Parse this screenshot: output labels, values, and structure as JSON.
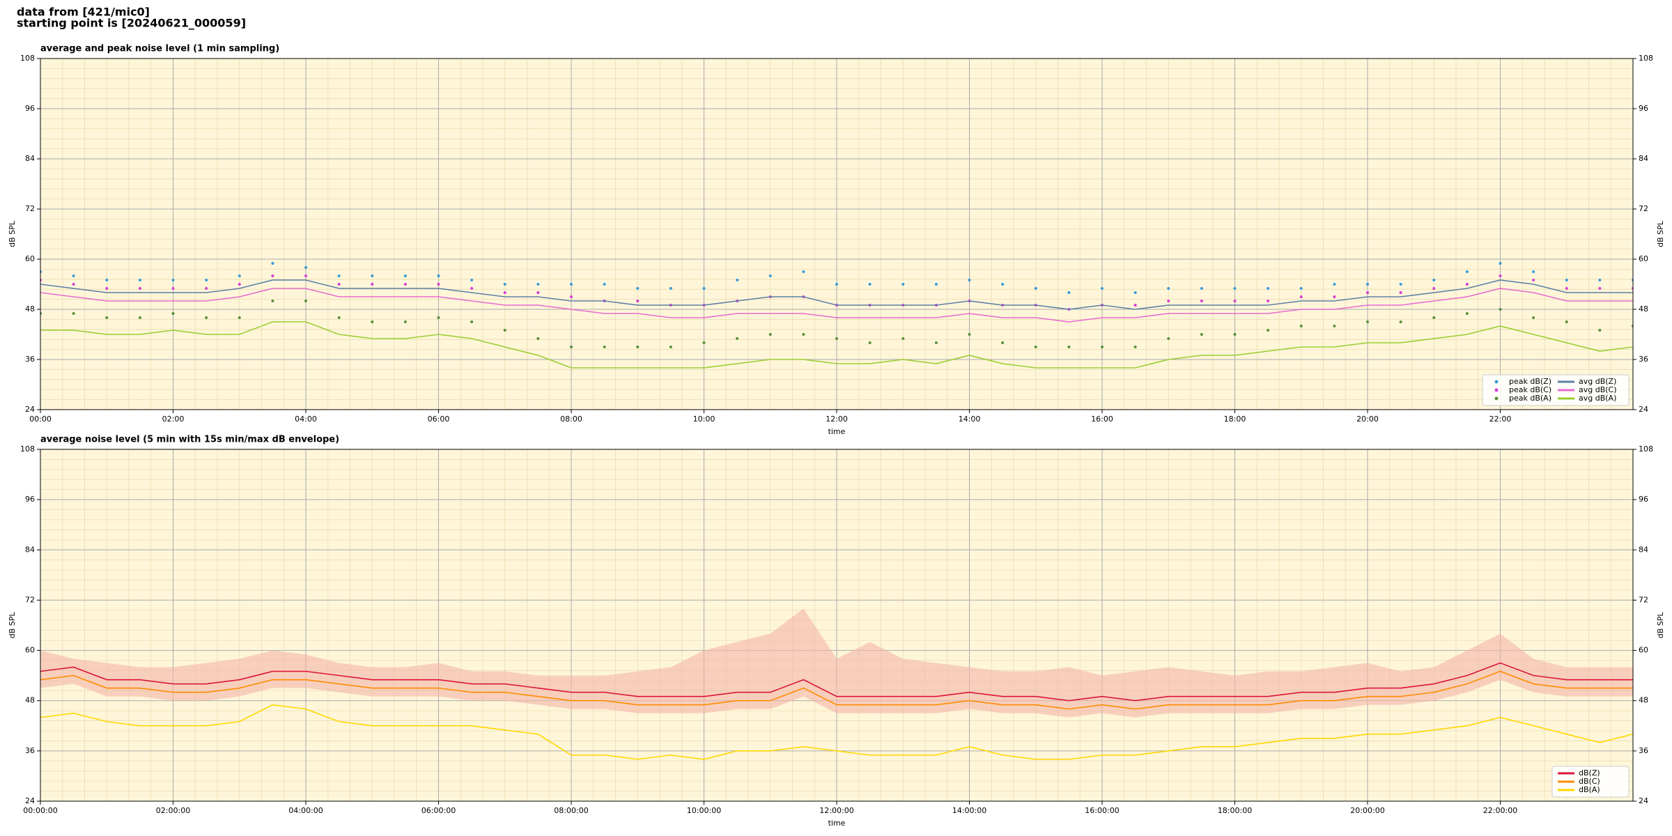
{
  "header": [
    "data from [421/mic0]",
    "starting point is [20240621_000059]"
  ],
  "chart_data": [
    {
      "type": "line",
      "title": "average and peak noise level (1 min sampling)",
      "xlabel": "time",
      "ylabel": "dB SPL",
      "xlim": [
        0,
        24
      ],
      "ylim": [
        24,
        108
      ],
      "yticks": [
        24,
        36,
        48,
        60,
        72,
        84,
        96,
        108
      ],
      "xticks": [
        {
          "value": 0,
          "label": "00:00"
        },
        {
          "value": 2,
          "label": "02:00"
        },
        {
          "value": 4,
          "label": "04:00"
        },
        {
          "value": 6,
          "label": "06:00"
        },
        {
          "value": 8,
          "label": "08:00"
        },
        {
          "value": 10,
          "label": "10:00"
        },
        {
          "value": 12,
          "label": "12:00"
        },
        {
          "value": 14,
          "label": "14:00"
        },
        {
          "value": 16,
          "label": "16:00"
        },
        {
          "value": 18,
          "label": "18:00"
        },
        {
          "value": 20,
          "label": "20:00"
        },
        {
          "value": 22,
          "label": "22:00"
        }
      ],
      "grid": true,
      "minor_grid": true,
      "background": "#fff6d9",
      "legend": "lower right",
      "legend_columns": 2,
      "x": [
        0,
        0.5,
        1,
        1.5,
        2,
        2.5,
        3,
        3.5,
        4,
        4.5,
        5,
        5.5,
        6,
        6.5,
        7,
        7.5,
        8,
        8.5,
        9,
        9.5,
        10,
        10.5,
        11,
        11.5,
        12,
        12.5,
        13,
        13.5,
        14,
        14.5,
        15,
        15.5,
        16,
        16.5,
        17,
        17.5,
        18,
        18.5,
        19,
        19.5,
        20,
        20.5,
        21,
        21.5,
        22,
        22.5,
        23,
        23.5,
        24
      ],
      "series": [
        {
          "name": "peak dB(Z)",
          "mode": "markers",
          "color": "#3a9ad9",
          "values": [
            57,
            56,
            55,
            55,
            55,
            55,
            56,
            59,
            58,
            56,
            56,
            56,
            56,
            55,
            54,
            54,
            54,
            54,
            53,
            53,
            53,
            55,
            56,
            57,
            54,
            54,
            54,
            54,
            55,
            54,
            53,
            52,
            53,
            52,
            53,
            53,
            53,
            53,
            53,
            54,
            54,
            54,
            55,
            57,
            59,
            57,
            55,
            55,
            55
          ]
        },
        {
          "name": "peak dB(C)",
          "mode": "markers",
          "color": "#d63ed6",
          "values": [
            55,
            54,
            53,
            53,
            53,
            53,
            54,
            56,
            56,
            54,
            54,
            54,
            54,
            53,
            52,
            52,
            51,
            50,
            50,
            49,
            49,
            50,
            51,
            51,
            49,
            49,
            49,
            49,
            50,
            49,
            49,
            48,
            49,
            49,
            50,
            50,
            50,
            50,
            51,
            51,
            52,
            52,
            53,
            54,
            56,
            55,
            53,
            53,
            53
          ]
        },
        {
          "name": "peak dB(A)",
          "mode": "markers",
          "color": "#5a8f3a",
          "values": [
            47,
            47,
            46,
            46,
            47,
            46,
            46,
            50,
            50,
            46,
            45,
            45,
            46,
            45,
            43,
            41,
            39,
            39,
            39,
            39,
            40,
            41,
            42,
            42,
            41,
            40,
            41,
            40,
            42,
            40,
            39,
            39,
            39,
            39,
            41,
            42,
            42,
            43,
            44,
            44,
            45,
            45,
            46,
            47,
            48,
            46,
            45,
            43,
            44
          ]
        },
        {
          "name": "avg dB(Z)",
          "mode": "lines",
          "color": "#5b7fa6",
          "values": [
            54,
            53,
            52,
            52,
            52,
            52,
            53,
            55,
            55,
            53,
            53,
            53,
            53,
            52,
            51,
            51,
            50,
            50,
            49,
            49,
            49,
            50,
            51,
            51,
            49,
            49,
            49,
            49,
            50,
            49,
            49,
            48,
            49,
            48,
            49,
            49,
            49,
            49,
            50,
            50,
            51,
            51,
            52,
            53,
            55,
            54,
            52,
            52,
            52
          ]
        },
        {
          "name": "avg dB(C)",
          "mode": "lines",
          "color": "#e86ad1",
          "values": [
            52,
            51,
            50,
            50,
            50,
            50,
            51,
            53,
            53,
            51,
            51,
            51,
            51,
            50,
            49,
            49,
            48,
            47,
            47,
            46,
            46,
            47,
            47,
            47,
            46,
            46,
            46,
            46,
            47,
            46,
            46,
            45,
            46,
            46,
            47,
            47,
            47,
            47,
            48,
            48,
            49,
            49,
            50,
            51,
            53,
            52,
            50,
            50,
            50
          ]
        },
        {
          "name": "avg dB(A)",
          "mode": "lines",
          "color": "#9acd32",
          "values": [
            43,
            43,
            42,
            42,
            43,
            42,
            42,
            45,
            45,
            42,
            41,
            41,
            42,
            41,
            39,
            37,
            34,
            34,
            34,
            34,
            34,
            35,
            36,
            36,
            35,
            35,
            36,
            35,
            37,
            35,
            34,
            34,
            34,
            34,
            36,
            37,
            37,
            38,
            39,
            39,
            40,
            40,
            41,
            42,
            44,
            42,
            40,
            38,
            39
          ]
        }
      ]
    },
    {
      "type": "line",
      "title": "average noise level (5 min with 15s min/max dB envelope)",
      "xlabel": "time",
      "ylabel": "dB SPL",
      "xlim": [
        0,
        24
      ],
      "ylim": [
        24,
        108
      ],
      "yticks": [
        24,
        36,
        48,
        60,
        72,
        84,
        96,
        108
      ],
      "xticks": [
        {
          "value": 0,
          "label": "00:00:00"
        },
        {
          "value": 2,
          "label": "02:00:00"
        },
        {
          "value": 4,
          "label": "04:00:00"
        },
        {
          "value": 6,
          "label": "06:00:00"
        },
        {
          "value": 8,
          "label": "08:00:00"
        },
        {
          "value": 10,
          "label": "10:00:00"
        },
        {
          "value": 12,
          "label": "12:00:00"
        },
        {
          "value": 14,
          "label": "14:00:00"
        },
        {
          "value": 16,
          "label": "16:00:00"
        },
        {
          "value": 18,
          "label": "18:00:00"
        },
        {
          "value": 20,
          "label": "20:00:00"
        },
        {
          "value": 22,
          "label": "22:00:00"
        }
      ],
      "grid": true,
      "minor_grid": true,
      "background": "#fff6d9",
      "legend": "lower right",
      "legend_columns": 1,
      "x": [
        0,
        0.5,
        1,
        1.5,
        2,
        2.5,
        3,
        3.5,
        4,
        4.5,
        5,
        5.5,
        6,
        6.5,
        7,
        7.5,
        8,
        8.5,
        9,
        9.5,
        10,
        10.5,
        11,
        11.5,
        12,
        12.5,
        13,
        13.5,
        14,
        14.5,
        15,
        15.5,
        16,
        16.5,
        17,
        17.5,
        18,
        18.5,
        19,
        19.5,
        20,
        20.5,
        21,
        21.5,
        22,
        22.5,
        23,
        23.5,
        24
      ],
      "envelope": {
        "color": "#f4b6a8",
        "low": [
          51,
          52,
          49,
          49,
          48,
          48,
          49,
          51,
          51,
          50,
          49,
          49,
          49,
          48,
          48,
          47,
          46,
          46,
          45,
          45,
          45,
          46,
          46,
          49,
          45,
          45,
          45,
          45,
          46,
          45,
          45,
          44,
          45,
          44,
          45,
          45,
          45,
          45,
          46,
          46,
          47,
          47,
          48,
          50,
          53,
          50,
          49,
          49,
          49
        ],
        "high": [
          60,
          58,
          57,
          56,
          56,
          57,
          58,
          60,
          59,
          57,
          56,
          56,
          57,
          55,
          55,
          54,
          54,
          54,
          55,
          56,
          60,
          62,
          64,
          70,
          58,
          62,
          58,
          57,
          56,
          55,
          55,
          56,
          54,
          55,
          56,
          55,
          54,
          55,
          55,
          56,
          57,
          55,
          56,
          60,
          64,
          58,
          56,
          56,
          56
        ]
      },
      "series": [
        {
          "name": "dB(Z)",
          "mode": "lines",
          "color": "#dc143c",
          "values": [
            55,
            56,
            53,
            53,
            52,
            52,
            53,
            55,
            55,
            54,
            53,
            53,
            53,
            52,
            52,
            51,
            50,
            50,
            49,
            49,
            49,
            50,
            50,
            53,
            49,
            49,
            49,
            49,
            50,
            49,
            49,
            48,
            49,
            48,
            49,
            49,
            49,
            49,
            50,
            50,
            51,
            51,
            52,
            54,
            57,
            54,
            53,
            53,
            53
          ]
        },
        {
          "name": "dB(C)",
          "mode": "lines",
          "color": "#ff8c00",
          "values": [
            53,
            54,
            51,
            51,
            50,
            50,
            51,
            53,
            53,
            52,
            51,
            51,
            51,
            50,
            50,
            49,
            48,
            48,
            47,
            47,
            47,
            48,
            48,
            51,
            47,
            47,
            47,
            47,
            48,
            47,
            47,
            46,
            47,
            46,
            47,
            47,
            47,
            47,
            48,
            48,
            49,
            49,
            50,
            52,
            55,
            52,
            51,
            51,
            51
          ]
        },
        {
          "name": "dB(A)",
          "mode": "lines",
          "color": "#ffd700",
          "values": [
            44,
            45,
            43,
            42,
            42,
            42,
            43,
            47,
            46,
            43,
            42,
            42,
            42,
            42,
            41,
            40,
            35,
            35,
            34,
            35,
            34,
            36,
            36,
            37,
            36,
            35,
            35,
            35,
            37,
            35,
            34,
            34,
            35,
            35,
            36,
            37,
            37,
            38,
            39,
            39,
            40,
            40,
            41,
            42,
            44,
            42,
            40,
            38,
            40
          ]
        }
      ]
    }
  ]
}
